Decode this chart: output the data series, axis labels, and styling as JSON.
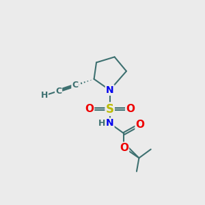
{
  "background_color": "#ebebeb",
  "bond_color": "#3d7070",
  "bond_width": 1.5,
  "colors": {
    "C": "#3d7070",
    "N": "#0000ee",
    "O": "#ee0000",
    "S": "#bbbb00",
    "H": "#3d7070"
  },
  "figsize": [
    3.0,
    3.0
  ],
  "dpi": 100,
  "ring": {
    "Nx": 5.3,
    "Ny": 5.85,
    "C2x": 4.3,
    "C2y": 6.55,
    "C3x": 4.45,
    "C3y": 7.6,
    "C4x": 5.6,
    "C4y": 7.95,
    "C5x": 6.35,
    "C5y": 7.05
  },
  "Sx": 5.3,
  "Sy": 4.65,
  "OLx": 4.05,
  "OLy": 4.65,
  "ORx": 6.55,
  "ORy": 4.65,
  "NHx": 5.3,
  "NHy": 3.75,
  "Ccarbx": 6.2,
  "Ccarby": 3.1,
  "O2x": 7.1,
  "O2y": 3.6,
  "O3x": 6.2,
  "O3y": 2.2,
  "TBx": 7.15,
  "TBy": 1.55
}
